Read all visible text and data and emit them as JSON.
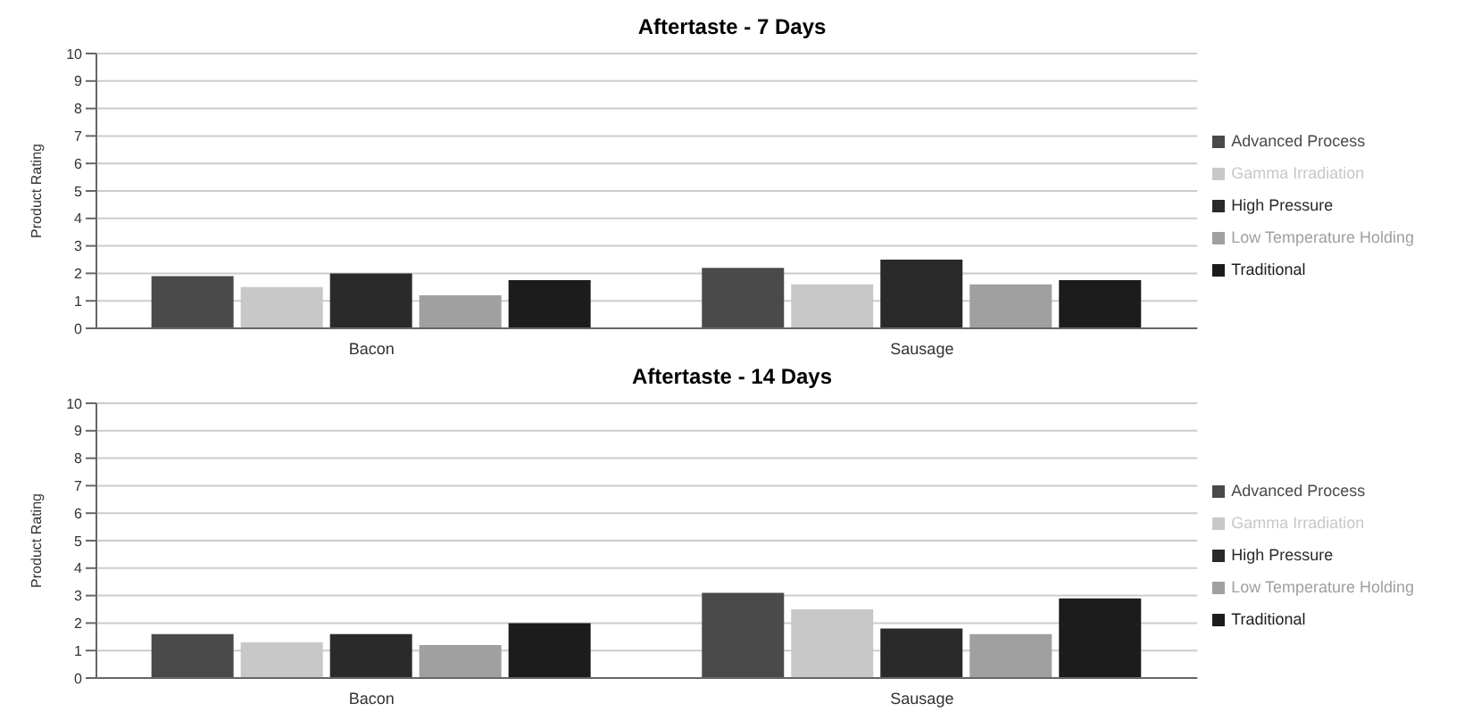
{
  "chart_data": [
    {
      "type": "bar",
      "title": "Aftertaste - 7 Days",
      "ylabel": "Product Rating",
      "categories": [
        "Bacon",
        "Sausage"
      ],
      "ylim": [
        0,
        10
      ],
      "yticks": [
        0,
        1,
        2,
        3,
        4,
        5,
        6,
        7,
        8,
        9,
        10
      ],
      "grid": "y",
      "legend": "right",
      "series": [
        {
          "name": "Advanced Process",
          "color": "#4a4a4a",
          "values": [
            1.9,
            2.2
          ]
        },
        {
          "name": "Gamma Irradiation",
          "color": "#c8c8c8",
          "values": [
            1.5,
            1.6
          ]
        },
        {
          "name": "High Pressure",
          "color": "#2a2a2a",
          "values": [
            2.0,
            2.5
          ]
        },
        {
          "name": "Low Temperature Holding",
          "color": "#a0a0a0",
          "values": [
            1.2,
            1.6
          ]
        },
        {
          "name": "Traditional",
          "color": "#1c1c1c",
          "values": [
            1.75,
            1.75
          ]
        }
      ]
    },
    {
      "type": "bar",
      "title": "Aftertaste - 14 Days",
      "ylabel": "Product Rating",
      "categories": [
        "Bacon",
        "Sausage"
      ],
      "ylim": [
        0,
        10
      ],
      "yticks": [
        0,
        1,
        2,
        3,
        4,
        5,
        6,
        7,
        8,
        9,
        10
      ],
      "grid": "y",
      "legend": "right",
      "series": [
        {
          "name": "Advanced Process",
          "color": "#4a4a4a",
          "values": [
            1.6,
            3.1
          ]
        },
        {
          "name": "Gamma Irradiation",
          "color": "#c8c8c8",
          "values": [
            1.3,
            2.5
          ]
        },
        {
          "name": "High Pressure",
          "color": "#2a2a2a",
          "values": [
            1.6,
            1.8
          ]
        },
        {
          "name": "Low Temperature Holding",
          "color": "#a0a0a0",
          "values": [
            1.2,
            1.6
          ]
        },
        {
          "name": "Traditional",
          "color": "#1c1c1c",
          "values": [
            2.0,
            2.9
          ]
        }
      ]
    }
  ]
}
